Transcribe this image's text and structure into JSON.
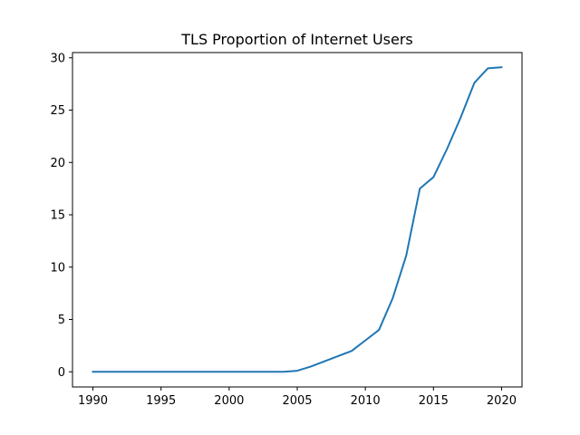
{
  "chart_data": {
    "type": "line",
    "title": "TLS Proportion of Internet Users",
    "xlabel": "",
    "ylabel": "",
    "xlim": [
      1988.5,
      2021.5
    ],
    "ylim": [
      -1.45,
      30.5
    ],
    "xticks": [
      1990,
      1995,
      2000,
      2005,
      2010,
      2015,
      2020
    ],
    "yticks": [
      0,
      5,
      10,
      15,
      20,
      25,
      30
    ],
    "grid": false,
    "color": "#1f77b4",
    "series": [
      {
        "x": [
          1990,
          1991,
          1992,
          1993,
          1994,
          1995,
          1996,
          1997,
          1998,
          1999,
          2000,
          2001,
          2002,
          2003,
          2004,
          2005,
          2006,
          2007,
          2008,
          2009,
          2010,
          2011,
          2012,
          2013,
          2014,
          2015,
          2016,
          2017,
          2018,
          2019,
          2020
        ],
        "values": [
          0,
          0,
          0,
          0,
          0,
          0,
          0,
          0,
          0,
          0,
          0,
          0,
          0,
          0,
          0,
          0.1,
          0.5,
          1.0,
          1.5,
          2.0,
          3.0,
          4.0,
          7.0,
          11.1,
          17.5,
          18.6,
          21.3,
          24.3,
          27.6,
          29.0,
          29.1
        ]
      }
    ]
  }
}
